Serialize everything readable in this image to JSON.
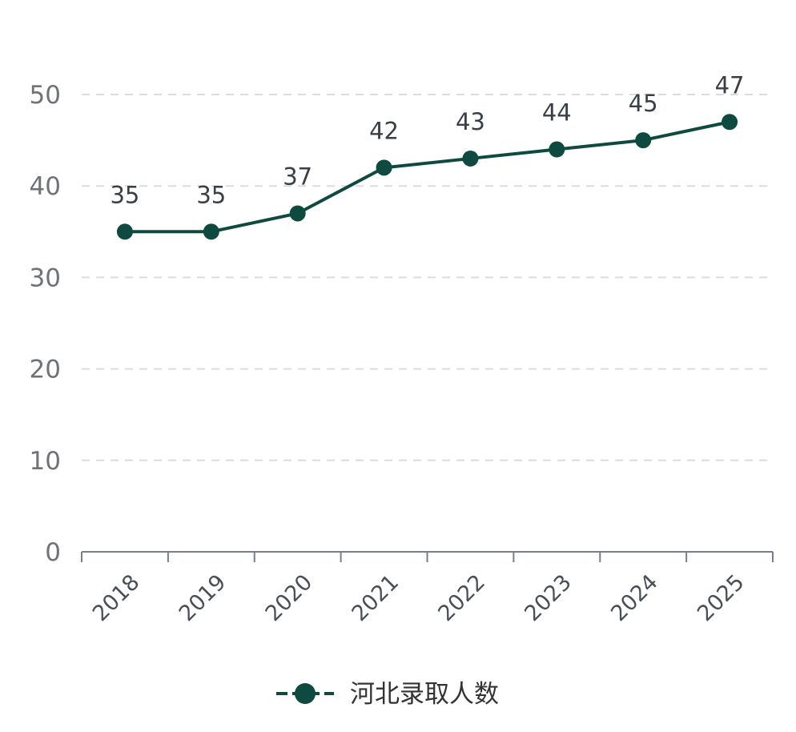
{
  "chart_data": {
    "type": "line",
    "categories": [
      "2018",
      "2019",
      "2020",
      "2021",
      "2022",
      "2023",
      "2024",
      "2025"
    ],
    "series": [
      {
        "name": "河北录取人数",
        "values": [
          35,
          35,
          37,
          42,
          43,
          44,
          45,
          47
        ],
        "color": "#0e4a40"
      }
    ],
    "title": "",
    "xlabel": "",
    "ylabel": "",
    "ylim": [
      0,
      50
    ],
    "yticks": [
      "0",
      "10",
      "20",
      "30",
      "40",
      "50"
    ],
    "grid": true,
    "grid_style": "dashed-horizontal",
    "data_labels": true,
    "legend": "bottom-center"
  }
}
